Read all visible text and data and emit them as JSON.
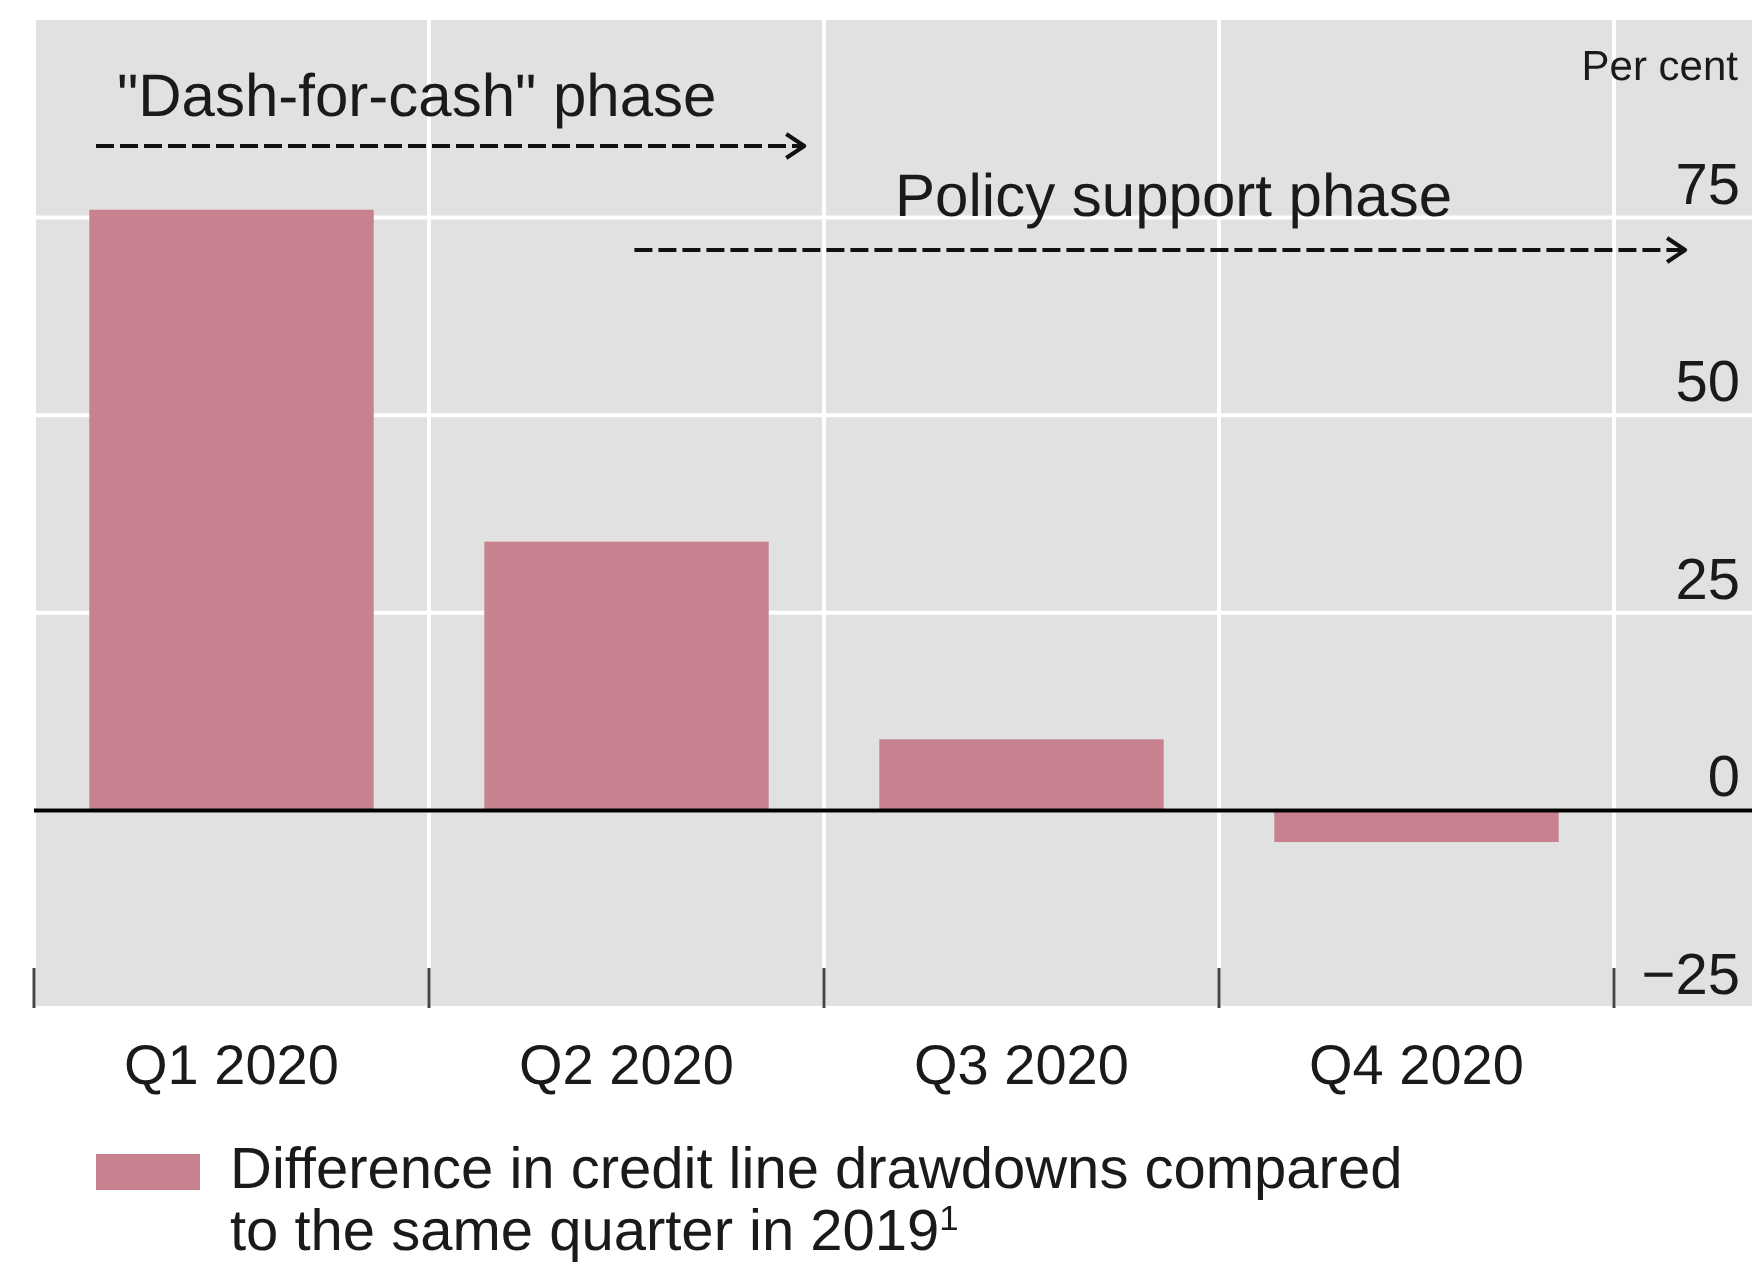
{
  "chart_data": {
    "type": "bar",
    "categories": [
      "Q1 2020",
      "Q2 2020",
      "Q3 2020",
      "Q4 2020"
    ],
    "series": [
      {
        "name": "Difference in credit line drawdowns compared to the same quarter in 2019$^{1}$",
        "color": "#c8828f",
        "values": [
          76,
          34,
          9,
          -4
        ]
      }
    ],
    "ylabel": "Per cent",
    "ylim": [
      -25,
      100
    ],
    "yticks": [
      {
        "value": -25,
        "label": "−25"
      },
      0,
      25,
      50,
      75
    ],
    "grid": true,
    "legend": "bottom",
    "annotations": [
      "\"Dash-for-cash\" phase",
      "Policy support phase"
    ]
  }
}
